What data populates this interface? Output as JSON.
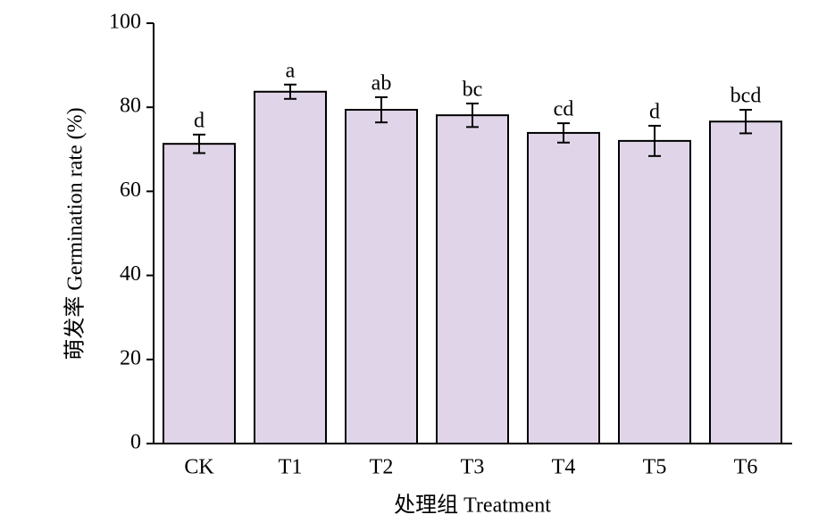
{
  "chart_data": {
    "type": "bar",
    "y_label": "萌发率 Germination rate (%)",
    "x_label": "处理组 Treatment",
    "categories": [
      "CK",
      "T1",
      "T2",
      "T3",
      "T4",
      "T5",
      "T6"
    ],
    "values": [
      71.3,
      83.7,
      79.4,
      78.1,
      73.9,
      72.0,
      76.6
    ],
    "errors": [
      2.2,
      1.7,
      3.0,
      2.8,
      2.3,
      3.6,
      2.8
    ],
    "significance_letters": [
      "d",
      "a",
      "ab",
      "bc",
      "cd",
      "d",
      "bcd"
    ],
    "color": "#e0d5e8",
    "ylim": [
      0,
      100
    ],
    "yticks": [
      0,
      20,
      40,
      60,
      80,
      100
    ]
  }
}
